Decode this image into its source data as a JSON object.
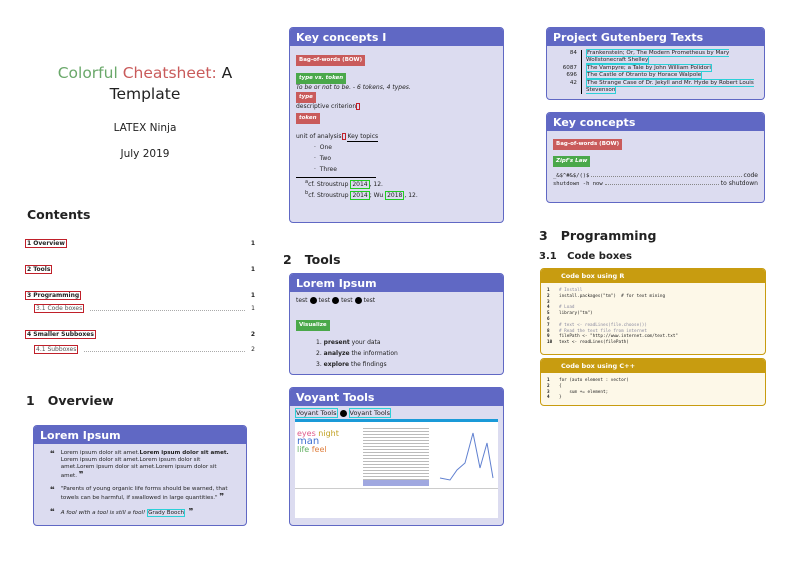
{
  "title": {
    "part1": "Colorful",
    "part2": "Cheatsheet:",
    "part3": "A",
    "part4": "Template",
    "author": "LATEX Ninja",
    "date": "July 2019"
  },
  "colors": {
    "box_header": "#6068c4",
    "box_body": "#dcdcf0",
    "tag_red": "#c95b5b",
    "tag_green": "#4aa84a",
    "code_header": "#c89c10"
  },
  "toc": {
    "heading": "Contents",
    "entries": [
      {
        "label": "1   Overview",
        "page": "1"
      },
      {
        "label": "2   Tools",
        "page": "1"
      },
      {
        "label": "3   Programming",
        "page": "1"
      },
      {
        "label": "3.1   Code boxes",
        "page": "1"
      },
      {
        "label": "4   Smaller Subboxes",
        "page": "2"
      },
      {
        "label": "4.1   Subboxes",
        "page": "2"
      }
    ]
  },
  "overview": {
    "heading": "1   Overview",
    "box_title": "Lorem Ipsum",
    "q1a": "Lorem ipsum dolor sit amet.",
    "q1b": "Lorem ipsum dolor sit amet.",
    "q1c": " Lorem ipsum dolor sit amet.Lorem ipsum dolor sit amet.Lorem ipsum dolor sit amet.Lorem ipsum dolor sit amet.",
    "q2": "\"Parents of young organic life forms should be warned, that towels can be harmful, if swallowed in large quantities.\"",
    "q3": "A fool with a tool is still a fool!",
    "q3_author": "Grady Booch"
  },
  "key1": {
    "title": "Key concepts I",
    "bow": "Bag-of-words (BOW)",
    "tvt": "type vs. token",
    "tvt_ex": "To be or not to be. - 6 tokens, 4 types.",
    "type": "type",
    "type_def": "descriptive criterion",
    "token": "token",
    "token_def": "unit of analysis",
    "topics_heading": "Key topics",
    "topics": [
      "One",
      "Two",
      "Three"
    ],
    "fn_a": "cf. Stroustrup",
    "fn_year": "2014",
    "fn_page": ", 12.",
    "fn_b": "cf. Stroustrup",
    "fn_wu": "; Wu",
    "fn_wu_year": "2018",
    "fn_a_mark": "a",
    "fn_b_mark": "b"
  },
  "tools": {
    "heading": "2   Tools",
    "lorem_title": "Lorem Ipsum",
    "test": "test",
    "visualize": "Visualize",
    "steps": [
      {
        "n": "1.",
        "b": "present",
        "t": " your data"
      },
      {
        "n": "2.",
        "b": "analyze",
        "t": " the information"
      },
      {
        "n": "3.",
        "b": "explore",
        "t": " the findings"
      }
    ],
    "voyant_title": "Voyant Tools",
    "voyant_link": "Voyant Tools"
  },
  "gutenberg": {
    "title": "Project Gutenberg Texts",
    "rows": [
      {
        "n": "84",
        "t": "Frankenstein; Or, The Modern Prometheus by Mary Wollstonecraft Shelley"
      },
      {
        "n": "6087",
        "t": "The Vampyre; a Tale by John William Polidori"
      },
      {
        "n": "696",
        "t": "The Castle of Otranto by Horace Walpole"
      },
      {
        "n": "42",
        "t": "The Strange Case of Dr. Jekyll and Mr. Hyde by Robert Louis Stevenson"
      }
    ]
  },
  "key2": {
    "title": "Key concepts",
    "bow": "Bag-of-words (BOW)",
    "zipf": "Zipf's Law",
    "c1": "_&$^#&$/()$",
    "c1d": "code",
    "c2": "shutdown -h now",
    "c2d": "to shutdown"
  },
  "programming": {
    "heading": "3   Programming",
    "sub": "3.1   Code boxes",
    "r_title": "Code box using R",
    "r_lines": [
      "# Install",
      "install.packages(\"tm\")  # for text mining",
      "",
      "# Load",
      "library(\"tm\")",
      "",
      "# text <- readLines(file.choose())",
      "# Read the text file from internet",
      "filePath <- \"http://www.internet.com/text.txt\"",
      "text <- readLines(filePath)"
    ],
    "cpp_title": "Code box using C++",
    "cpp_lines": [
      "for (auto element : vector)",
      "{",
      "    sum += element;",
      "}"
    ]
  }
}
